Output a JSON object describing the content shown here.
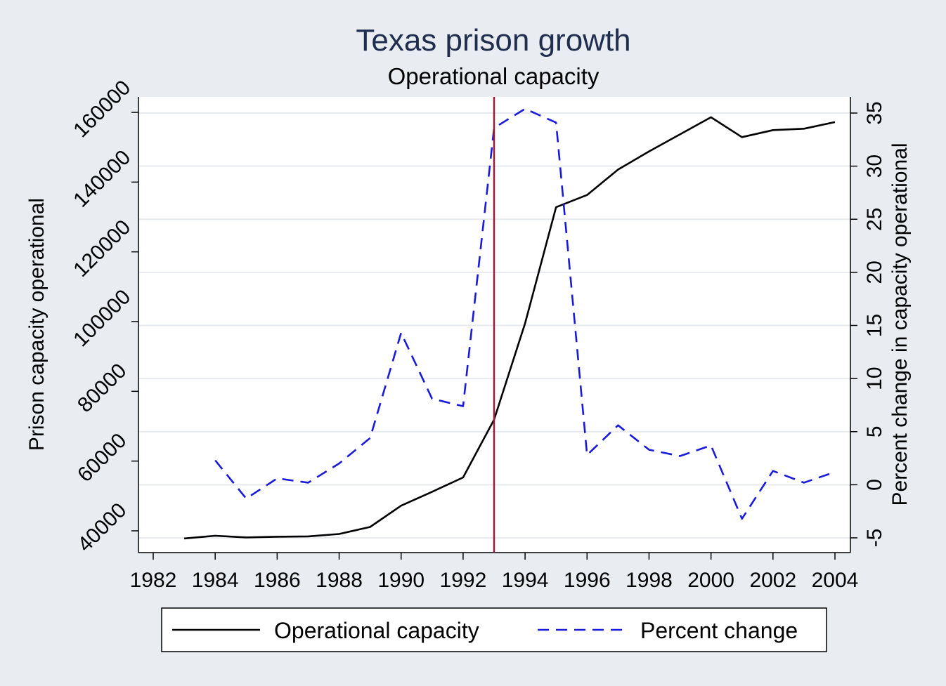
{
  "chart_data": {
    "type": "line",
    "title": "Texas prison growth",
    "subtitle": "Operational capacity",
    "xlabel": "",
    "ylabel_left": "Prison capacity operational",
    "ylabel_right": "Percent change in capacity operational",
    "xlim": [
      1982,
      2004
    ],
    "ylim_left": [
      40000,
      160000
    ],
    "ylim_right": [
      -5,
      35
    ],
    "x_ticks": [
      "1982",
      "1984",
      "1986",
      "1988",
      "1990",
      "1992",
      "1994",
      "1996",
      "1998",
      "2000",
      "2002",
      "2004"
    ],
    "y_ticks_left": [
      "40000",
      "60000",
      "80000",
      "100000",
      "120000",
      "140000",
      "160000"
    ],
    "y_ticks_right": [
      "-5",
      "0",
      "5",
      "10",
      "15",
      "20",
      "25",
      "30",
      "35"
    ],
    "grid": true,
    "legend_position": "bottom",
    "reference_line_x": 1993,
    "colors": {
      "capacity": "#000000",
      "percent": "#1a1adb",
      "reference": "#9b1c3a",
      "title": "#1f2d4f",
      "plot_bg": "#ffffff",
      "outer_bg": "#e9edf2",
      "grid": "#e6e9ee"
    },
    "series": [
      {
        "name": "Operational capacity",
        "axis": "left",
        "style": "solid",
        "x": [
          1983,
          1984,
          1985,
          1986,
          1987,
          1988,
          1989,
          1990,
          1991,
          1992,
          1993,
          1994,
          1995,
          1996,
          1997,
          1998,
          2000,
          2001,
          2002,
          2003,
          2004
        ],
        "values": [
          37800,
          38600,
          38100,
          38300,
          38400,
          39100,
          41100,
          47200,
          51200,
          55300,
          71900,
          99500,
          132800,
          136300,
          143600,
          148800,
          158600,
          152900,
          154900,
          155300,
          157200
        ]
      },
      {
        "name": "Percent change",
        "axis": "right",
        "style": "dashed",
        "x": [
          1984,
          1985,
          1986,
          1987,
          1988,
          1989,
          1990,
          1991,
          1992,
          1993,
          1994,
          1995,
          1996,
          1997,
          1998,
          1999,
          2000,
          2001,
          2002,
          2003,
          2004
        ],
        "values": [
          2.3,
          -1.3,
          0.6,
          0.2,
          2.0,
          4.4,
          14.3,
          8.1,
          7.4,
          33.6,
          35.4,
          34.1,
          2.8,
          5.6,
          3.3,
          2.7,
          3.7,
          -3.2,
          1.3,
          0.2,
          1.2
        ]
      }
    ]
  }
}
